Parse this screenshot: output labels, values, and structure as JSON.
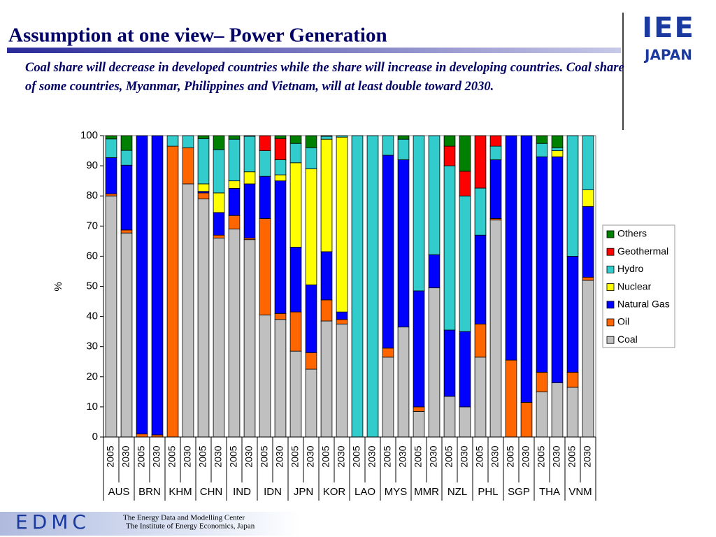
{
  "chart_data": {
    "type": "stacked_bar",
    "title": "Assumption at one view– Power Generation",
    "subtitle": "Coal share will decrease  in developed countries while the share will increase in developing countries. Coal share of some countries, Myanmar, Philippines and Vietnam, will at least double toward 2030.",
    "ylabel": "%",
    "groups": [
      "AUS",
      "BRN",
      "KHM",
      "CHN",
      "IND",
      "IDN",
      "JPN",
      "KOR",
      "LAO",
      "MYS",
      "MMR",
      "NZL",
      "PHL",
      "SGP",
      "THA",
      "VNM"
    ],
    "categories": [
      "2005",
      "2030",
      "2005",
      "2030",
      "2005",
      "2030",
      "2005",
      "2030",
      "2005",
      "2030",
      "2005",
      "2030",
      "2005",
      "2030",
      "2005",
      "2030",
      "2005",
      "2030",
      "2005",
      "2030",
      "2005",
      "2030",
      "2005",
      "2030",
      "2005",
      "2030",
      "2005",
      "2030",
      "2005",
      "2030",
      "2005",
      "2030"
    ],
    "ylim": [
      0,
      100
    ],
    "yticks": [
      0,
      10,
      20,
      30,
      40,
      50,
      60,
      70,
      80,
      90,
      100
    ],
    "legend": "right",
    "series": [
      {
        "name": "Coal",
        "color": "#c0c0c0",
        "values": [
          80,
          67.7,
          0,
          0,
          0,
          84,
          79,
          66,
          69,
          65.5,
          40.5,
          39,
          28.5,
          22.5,
          38.5,
          37.5,
          0,
          0,
          26.5,
          36.5,
          8.5,
          49.5,
          13.5,
          10,
          26.5,
          72,
          0,
          0,
          15,
          18,
          16.5,
          52
        ]
      },
      {
        "name": "Oil",
        "color": "#ff6600",
        "values": [
          0.7,
          1,
          1,
          0.7,
          96.5,
          12,
          2,
          1,
          4.5,
          0.5,
          32,
          2,
          13,
          5.5,
          7,
          1.5,
          0,
          0,
          3,
          0,
          1.5,
          0,
          0,
          0,
          11,
          0.5,
          25.5,
          11.5,
          6.5,
          0,
          5,
          1
        ]
      },
      {
        "name": "Natural Gas",
        "color": "#0000ff",
        "values": [
          12,
          21.5,
          99,
          99.3,
          0,
          0,
          0.5,
          7.5,
          9,
          18,
          14,
          44,
          21.5,
          22.5,
          16,
          2.5,
          0,
          0,
          64,
          55.5,
          38.5,
          11,
          22,
          25,
          29.5,
          19.5,
          74.5,
          88.5,
          71.5,
          75,
          38.5,
          23.5
        ]
      },
      {
        "name": "Nuclear",
        "color": "#ffff00",
        "values": [
          0,
          0,
          0,
          0,
          0,
          0,
          2.5,
          6.5,
          2.5,
          4,
          0,
          2,
          28,
          38.5,
          37.3,
          58,
          0,
          0,
          0,
          0,
          0,
          0,
          0,
          0,
          0,
          0,
          0,
          0,
          0,
          2,
          0,
          5.5
        ]
      },
      {
        "name": "Hydro",
        "color": "#33cccc",
        "values": [
          6.2,
          4.9,
          0,
          0,
          3.5,
          4,
          15,
          14.4,
          13.8,
          11.8,
          8.5,
          5,
          6.4,
          7,
          1,
          0.5,
          100,
          100,
          6.5,
          6.8,
          51.5,
          39.5,
          54.5,
          45,
          15.6,
          4.5,
          0,
          0,
          4.4,
          1,
          40,
          18
        ]
      },
      {
        "name": "Geothermal",
        "color": "#ff0000",
        "values": [
          0,
          0,
          0,
          0,
          0,
          0,
          0,
          0,
          0,
          0,
          5,
          7,
          0,
          0,
          0,
          0,
          0,
          0,
          0,
          0,
          0,
          0,
          6.5,
          8.2,
          17.4,
          3.5,
          0,
          0,
          0,
          0,
          0,
          0
        ]
      },
      {
        "name": "Others",
        "color": "#008000",
        "values": [
          1.1,
          4.9,
          0,
          0,
          0,
          0,
          1,
          4.6,
          1.2,
          0.2,
          0,
          1,
          2.6,
          4,
          0.2,
          0,
          0,
          0,
          0,
          1.2,
          0,
          0,
          3.5,
          11.8,
          0,
          0,
          0,
          0,
          2.6,
          4,
          0,
          0
        ]
      }
    ]
  },
  "logos": {
    "top": [
      "IEE",
      "JAPAN"
    ],
    "bottom": "EDMC",
    "footer": [
      "The Energy Data and Modelling Center",
      "The Institute of Energy Economics, Japan"
    ]
  }
}
